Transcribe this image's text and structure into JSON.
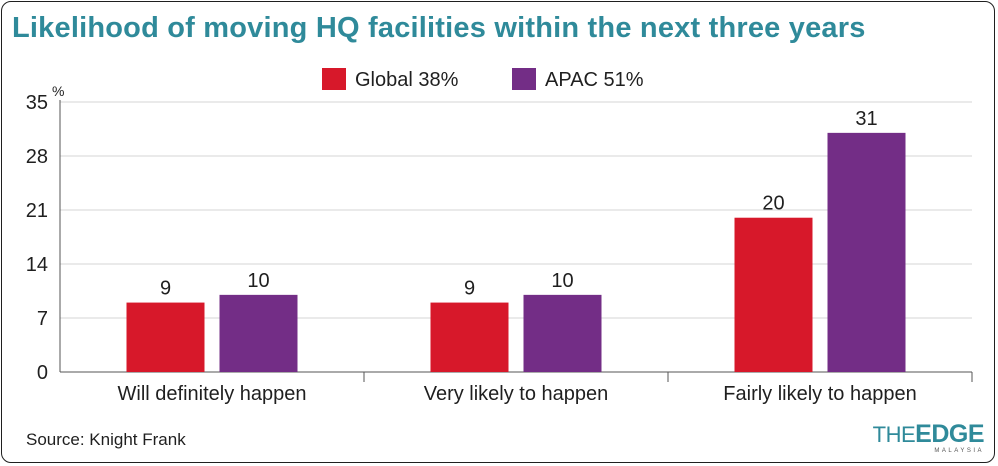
{
  "chart_data": {
    "type": "bar",
    "title": "Likelihood of moving HQ facilities within the next three years",
    "unit_label": "%",
    "categories": [
      "Will definitely happen",
      "Very likely to happen",
      "Fairly likely to happen"
    ],
    "series": [
      {
        "name": "Global 38%",
        "values": [
          9,
          9,
          20
        ],
        "color": "#d7182a"
      },
      {
        "name": "APAC 51%",
        "values": [
          10,
          10,
          31
        ],
        "color": "#732d86"
      }
    ],
    "yticks": [
      0,
      7,
      14,
      21,
      28,
      35
    ],
    "ylim": [
      0,
      35
    ],
    "grid": true,
    "legend_position": "top-center"
  },
  "source": "Source: Knight Frank",
  "logo": {
    "part1": "THE",
    "part2": "EDGE",
    "sub": "MALAYSIA",
    "color": "#2f8a9a"
  }
}
